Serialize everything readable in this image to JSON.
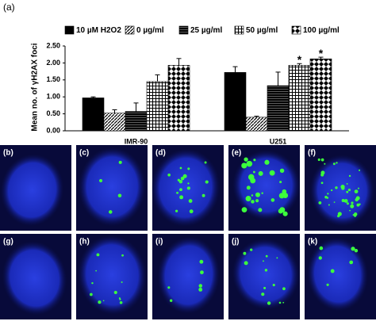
{
  "chart_data": {
    "type": "bar",
    "panel_label": "(a)",
    "y_label": "Mean no. of γH2AX foci",
    "categories": [
      "IMR-90",
      "U251"
    ],
    "series": [
      {
        "name": "10 µM H2O2",
        "pattern": "solid",
        "color": "#000000",
        "values": [
          0.97,
          1.72
        ],
        "errors": [
          0.03,
          0.17
        ]
      },
      {
        "name": "0 µg/ml",
        "pattern": "diagonal",
        "color": "#000000",
        "values": [
          0.52,
          0.4
        ],
        "errors": [
          0.1,
          0.03
        ]
      },
      {
        "name": "25 µg/ml",
        "pattern": "dense",
        "color": "#000000",
        "values": [
          0.57,
          1.33
        ],
        "errors": [
          0.25,
          0.4
        ]
      },
      {
        "name": "50 µg/ml",
        "pattern": "grid",
        "color": "#000000",
        "values": [
          1.45,
          1.93
        ],
        "errors": [
          0.2,
          0.05
        ]
      },
      {
        "name": "100 µg/ml",
        "pattern": "checker",
        "color": "#000000",
        "values": [
          1.93,
          2.12
        ],
        "errors": [
          0.2,
          0.05
        ]
      }
    ],
    "annotations": [
      "*",
      "*"
    ],
    "ylim": [
      0,
      2.5
    ],
    "yticks": [
      {
        "value": 0,
        "label": "0.00"
      },
      {
        "value": 0.5,
        "label": "0.50"
      },
      {
        "value": 1,
        "label": "1.00"
      },
      {
        "value": 1.5,
        "label": "1.50"
      },
      {
        "value": 2,
        "label": "2.00"
      },
      {
        "value": 2.5,
        "label": "2.50"
      }
    ]
  },
  "panels": [
    "(b)",
    "(c)",
    "(d)",
    "(e)",
    "(f)",
    "(g)",
    "(h)",
    "(i)",
    "(j)",
    "(k)"
  ]
}
